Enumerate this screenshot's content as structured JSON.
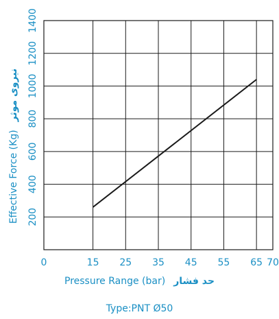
{
  "chart_data": {
    "type": "line",
    "title": "",
    "xlabel": "Pressure Range (bar)",
    "xlabel_fa": "حد فشار",
    "ylabel": "Effective Force (Kg)",
    "ylabel_fa": "نیروی موثر",
    "xlim": [
      0,
      70
    ],
    "ylim": [
      0,
      1400
    ],
    "xticks": [
      0,
      15,
      25,
      35,
      45,
      55,
      65,
      70
    ],
    "yticks": [
      200,
      400,
      600,
      800,
      1000,
      1200,
      1400
    ],
    "grid": true,
    "series": [
      {
        "x": [
          15,
          65
        ],
        "values": [
          260,
          1040
        ]
      }
    ],
    "caption": "Type:PNT Ø50"
  },
  "colors": {
    "text": "#1a8fc4",
    "grid": "#1a1a1a",
    "line": "#1a1a1a"
  }
}
